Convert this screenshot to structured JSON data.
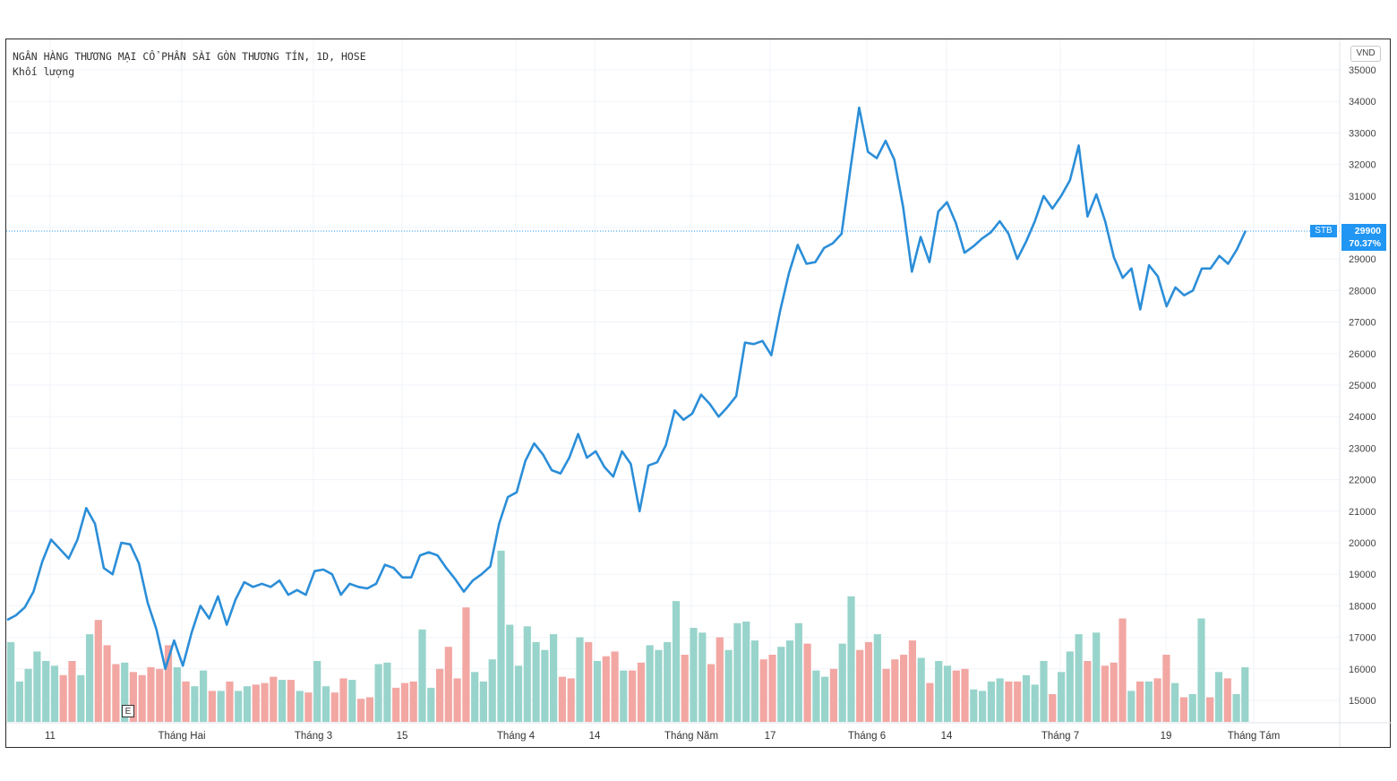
{
  "chart_data": {
    "type": "line",
    "title": "NGÂN HÀNG THƯƠNG MẠI CỔ PHẦN SÀI GÒN THƯƠNG TÍN, 1D, HOSE",
    "subtitle": "Khối lượng",
    "currency": "VND",
    "symbol": "STB",
    "last_price": "29900",
    "change_pct": "70.37%",
    "event_marker": "E",
    "y_ticks": [
      "35000",
      "34000",
      "33000",
      "32000",
      "31000",
      "30000",
      "29000",
      "28000",
      "27000",
      "26000",
      "25000",
      "24000",
      "23000",
      "22000",
      "21000",
      "20000",
      "19000",
      "18000",
      "17000",
      "16000",
      "15000"
    ],
    "ylim": [
      14700,
      35300
    ],
    "x_tick_labels": [
      "11",
      "Tháng Hai",
      "Tháng 3",
      "15",
      "Tháng 4",
      "14",
      "Tháng Năm",
      "17",
      "Tháng 6",
      "14",
      "Tháng 7",
      "19",
      "Tháng Tám"
    ],
    "price_series": [
      17550,
      17700,
      17950,
      18450,
      19400,
      20100,
      19800,
      19500,
      20100,
      21100,
      20600,
      19200,
      19000,
      20000,
      19950,
      19350,
      18100,
      17250,
      16000,
      16900,
      16100,
      17150,
      18000,
      17600,
      18300,
      17400,
      18200,
      18750,
      18600,
      18700,
      18600,
      18800,
      18350,
      18500,
      18350,
      19100,
      19150,
      19000,
      18350,
      18700,
      18600,
      18550,
      18700,
      19300,
      19200,
      18900,
      18900,
      19600,
      19700,
      19600,
      19200,
      18850,
      18450,
      18800,
      19000,
      19250,
      20600,
      21450,
      21600,
      22600,
      23150,
      22800,
      22300,
      22200,
      22700,
      23450,
      22700,
      22900,
      22400,
      22100,
      22900,
      22500,
      21000,
      22450,
      22550,
      23100,
      24200,
      23900,
      24100,
      24700,
      24400,
      24000,
      24300,
      24650,
      26350,
      26300,
      26400,
      25950,
      27350,
      28550,
      29450,
      28850,
      28900,
      29350,
      29500,
      29800,
      31850,
      33800,
      32400,
      32200,
      32750,
      32150,
      30650,
      28600,
      29700,
      28900,
      30500,
      30800,
      30150,
      29200,
      29400,
      29650,
      29850,
      30200,
      29800,
      29000,
      29550,
      30200,
      31000,
      30600,
      31000,
      31500,
      32600,
      30350,
      31050,
      30200,
      29050,
      28400,
      28700,
      27400,
      28800,
      28450,
      27500,
      28100,
      27850,
      28000,
      28700,
      28700,
      29100,
      28850,
      29300,
      29900
    ],
    "volume_series": {
      "name": "Khối lượng",
      "values": [
        16.85,
        15.6,
        16.0,
        16.55,
        16.25,
        16.1,
        15.8,
        16.25,
        15.8,
        17.1,
        17.55,
        16.75,
        16.15,
        16.2,
        15.9,
        15.8,
        16.05,
        16.0,
        16.75,
        16.05,
        15.6,
        15.45,
        15.95,
        15.3,
        15.3,
        15.6,
        15.3,
        15.45,
        15.5,
        15.55,
        15.75,
        15.65,
        15.65,
        15.3,
        15.25,
        16.25,
        15.45,
        15.25,
        15.7,
        15.65,
        15.05,
        15.1,
        16.15,
        16.2,
        15.4,
        15.55,
        15.6,
        17.25,
        15.4,
        16.0,
        16.7,
        15.7,
        17.95,
        15.9,
        15.6,
        16.3,
        19.75,
        17.4,
        16.1,
        17.35,
        16.85,
        16.6,
        17.1,
        15.75,
        15.7,
        17.0,
        16.85,
        16.25,
        16.4,
        16.55,
        15.95,
        15.95,
        16.2,
        16.75,
        16.6,
        16.85,
        18.15,
        16.45,
        17.3,
        17.15,
        16.15,
        17.0,
        16.6,
        17.45,
        17.5,
        16.9,
        16.3,
        16.45,
        16.7,
        16.9,
        17.45,
        16.8,
        15.95,
        15.75,
        16.0,
        16.8,
        18.3,
        16.6,
        16.85,
        17.1,
        16.0,
        16.3,
        16.45,
        16.9,
        16.35,
        15.55,
        16.25,
        16.1,
        15.95,
        16.0,
        15.35,
        15.3,
        15.6,
        15.7,
        15.6,
        15.6,
        15.8,
        15.5,
        16.25,
        15.2,
        15.9,
        16.55,
        17.1,
        16.25,
        17.15,
        16.1,
        16.2,
        17.6,
        15.3,
        15.6,
        15.6,
        15.7,
        16.45,
        15.55,
        15.1,
        15.2,
        17.6,
        15.1,
        15.9,
        15.7,
        15.2,
        16.05
      ],
      "up": [
        true,
        true,
        true,
        true,
        true,
        true,
        false,
        false,
        true,
        true,
        false,
        false,
        false,
        true,
        false,
        false,
        false,
        false,
        false,
        true,
        false,
        true,
        true,
        false,
        true,
        false,
        true,
        true,
        false,
        false,
        false,
        true,
        false,
        true,
        false,
        true,
        true,
        false,
        false,
        true,
        false,
        false,
        true,
        true,
        false,
        false,
        false,
        true,
        true,
        false,
        false,
        false,
        false,
        true,
        true,
        true,
        true,
        true,
        true,
        true,
        true,
        true,
        true,
        false,
        false,
        true,
        false,
        true,
        false,
        false,
        true,
        false,
        false,
        true,
        true,
        true,
        true,
        false,
        true,
        true,
        false,
        false,
        true,
        true,
        true,
        true,
        false,
        false,
        true,
        true,
        true,
        false,
        true,
        true,
        false,
        true,
        true,
        false,
        false,
        true,
        false,
        false,
        false,
        false,
        true,
        false,
        true,
        true,
        false,
        false,
        true,
        true,
        true,
        true,
        false,
        false,
        true,
        true,
        true,
        false,
        true,
        true,
        true,
        false,
        true,
        false,
        false,
        false,
        true,
        false,
        true,
        false,
        false,
        true,
        false,
        true,
        true,
        false,
        true,
        false,
        true,
        true
      ]
    }
  }
}
